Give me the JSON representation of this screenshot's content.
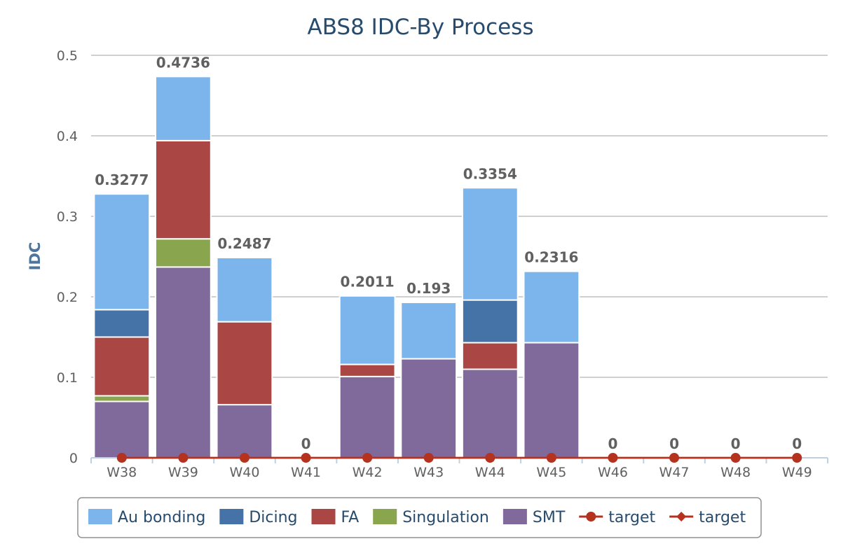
{
  "chart_data": {
    "type": "bar",
    "stacked": true,
    "title": "ABS8 IDC-By Process",
    "xlabel": "",
    "ylabel": "IDC",
    "ylim": [
      0,
      0.5
    ],
    "yticks": [
      "0",
      "0.1",
      "0.2",
      "0.3",
      "0.4",
      "0.5"
    ],
    "grid": true,
    "legend_position": "bottom-center",
    "categories": [
      "W38",
      "W39",
      "W40",
      "W41",
      "W42",
      "W43",
      "W44",
      "W45",
      "W46",
      "W47",
      "W48",
      "W49"
    ],
    "totals": [
      "0.3277",
      "0.4736",
      "0.2487",
      "0",
      "0.2011",
      "0.193",
      "0.3354",
      "0.2316",
      "0",
      "0",
      "0",
      "0"
    ],
    "series": [
      {
        "name": "SMT",
        "color": "#80699b",
        "values": [
          0.07,
          0.237,
          0.066,
          0,
          0.101,
          0.123,
          0.11,
          0.143,
          0,
          0,
          0,
          0
        ]
      },
      {
        "name": "Singulation",
        "color": "#89a54e",
        "values": [
          0.007,
          0.035,
          0,
          0,
          0,
          0,
          0,
          0,
          0,
          0,
          0,
          0
        ]
      },
      {
        "name": "FA",
        "color": "#aa4643",
        "values": [
          0.073,
          0.122,
          0.103,
          0,
          0.015,
          0,
          0.033,
          0,
          0,
          0,
          0,
          0
        ]
      },
      {
        "name": "Dicing",
        "color": "#4572a7",
        "values": [
          0.034,
          0,
          0,
          0,
          0,
          0,
          0.053,
          0,
          0,
          0,
          0,
          0
        ]
      },
      {
        "name": "Au bonding",
        "color": "#7cb5ec",
        "values": [
          0.1437,
          0.0796,
          0.0797,
          0,
          0.0851,
          0.07,
          0.1394,
          0.0886,
          0,
          0,
          0,
          0
        ]
      }
    ],
    "lines": [
      {
        "name": "target",
        "color": "#b5321f",
        "marker": "circle",
        "values": [
          0,
          0,
          0,
          0,
          0,
          0,
          0,
          0,
          0,
          0,
          0,
          0
        ]
      },
      {
        "name": "target",
        "color": "#b5321f",
        "marker": "diamond",
        "values": [
          0,
          0,
          0,
          0,
          0,
          0,
          0,
          0,
          0,
          0,
          0,
          0
        ]
      }
    ],
    "legend_order": [
      "Au bonding",
      "Dicing",
      "FA",
      "Singulation",
      "SMT",
      "target",
      "target"
    ]
  }
}
